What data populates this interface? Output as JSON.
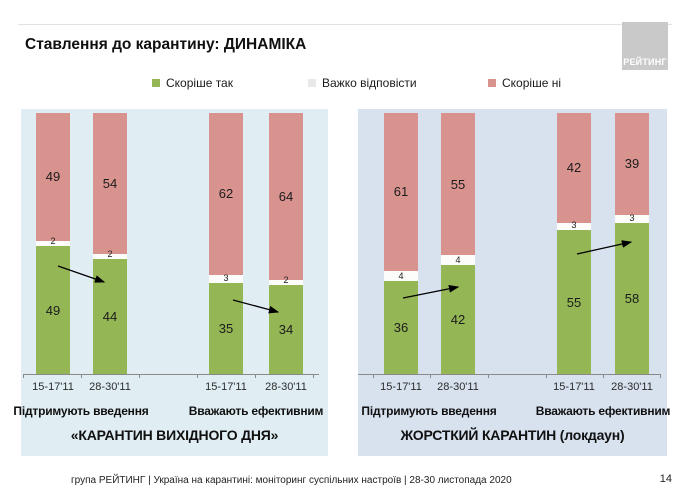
{
  "slide": {
    "title": "Ставлення до карантину: ДИНАМІКА",
    "logo": "РЕЙТИНГ",
    "footer": "група РЕЙТИНГ | Україна на карантині: моніторинг суспільних настроїв | 28-30 листопада 2020",
    "page_number": "14"
  },
  "legend": {
    "items": [
      {
        "label": "Скоріше так",
        "color": "#94b655"
      },
      {
        "label": "Важко відповісти",
        "color": "#e9e9e7"
      },
      {
        "label": "Скоріше ні",
        "color": "#d9938f"
      }
    ]
  },
  "chart_data": {
    "type": "bar",
    "subtype": "100%-stacked-columns",
    "legend_position": "top",
    "series": [
      "Скоріше так",
      "Важко відповісти",
      "Скоріше ні"
    ],
    "colors": {
      "yes": "#94b655",
      "hard": "#fcfcfa",
      "no": "#d9938f",
      "panel_left_bg": "#e0eef4",
      "panel_right_bg": "#d8e2ef"
    },
    "panels": [
      {
        "title": "«КАРАНТИН ВИХІДНОГО ДНЯ»",
        "groups": [
          {
            "label": "Підтримують введення",
            "trend": "down",
            "bars": [
              {
                "date": "15-17'11",
                "yes": 49,
                "hard": 2,
                "no": 49
              },
              {
                "date": "28-30'11",
                "yes": 44,
                "hard": 2,
                "no": 54
              }
            ]
          },
          {
            "label": "Вважають ефективним",
            "trend": "down",
            "bars": [
              {
                "date": "15-17'11",
                "yes": 35,
                "hard": 3,
                "no": 62
              },
              {
                "date": "28-30'11",
                "yes": 34,
                "hard": 2,
                "no": 64
              }
            ]
          }
        ]
      },
      {
        "title": "ЖОРСТКИЙ КАРАНТИН (локдаун)",
        "groups": [
          {
            "label": "Підтримують введення",
            "trend": "up",
            "bars": [
              {
                "date": "15-17'11",
                "yes": 36,
                "hard": 4,
                "no": 61
              },
              {
                "date": "28-30'11",
                "yes": 42,
                "hard": 4,
                "no": 55
              }
            ]
          },
          {
            "label": "Вважають ефективним",
            "trend": "up",
            "bars": [
              {
                "date": "15-17'11",
                "yes": 55,
                "hard": 3,
                "no": 42
              },
              {
                "date": "28-30'11",
                "yes": 58,
                "hard": 3,
                "no": 39
              }
            ]
          }
        ]
      }
    ]
  }
}
